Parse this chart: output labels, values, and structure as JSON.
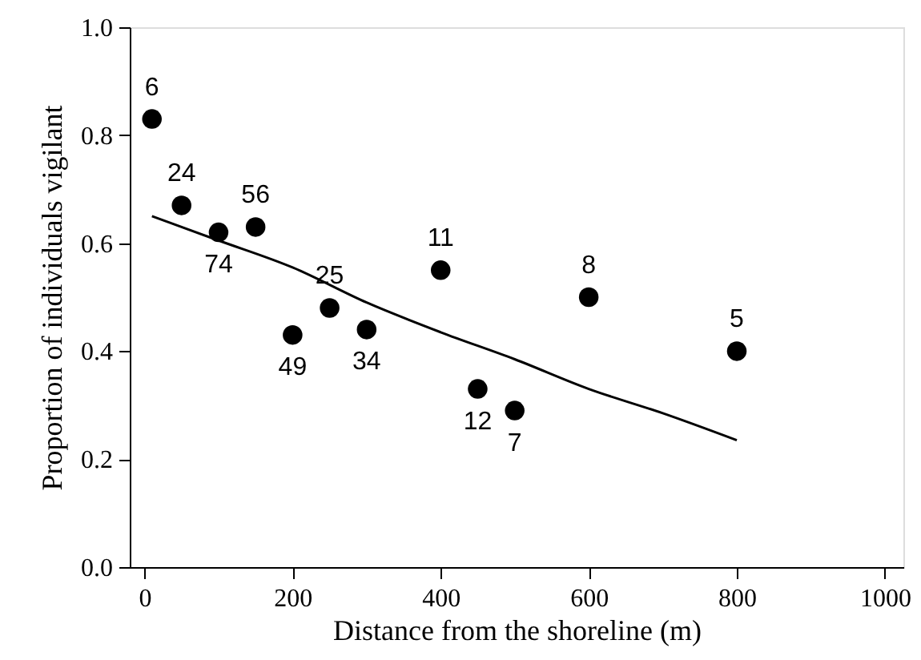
{
  "chart_data": {
    "type": "scatter",
    "xlabel": "Distance from the shoreline (m)",
    "ylabel": "Proportion of individuals vigilant",
    "xlim": [
      -20,
      1025
    ],
    "ylim": [
      0,
      1
    ],
    "xticks": [
      0,
      200,
      400,
      600,
      800,
      1000
    ],
    "yticks": [
      {
        "value": 0,
        "label": "0.0"
      },
      {
        "value": 0.2,
        "label": "0.2"
      },
      {
        "value": 0.4,
        "label": "0.4"
      },
      {
        "value": 0.6,
        "label": "0.6"
      },
      {
        "value": 0.8,
        "label": "0.8"
      },
      {
        "value": 1,
        "label": "1.0"
      }
    ],
    "grid": false,
    "series": [
      {
        "marker": "circle",
        "color": "#000000",
        "x": [
          10,
          50,
          100,
          150,
          200,
          250,
          300,
          400,
          450,
          500,
          600,
          800
        ],
        "values": [
          0.83,
          0.67,
          0.62,
          0.63,
          0.43,
          0.48,
          0.44,
          0.55,
          0.33,
          0.29,
          0.5,
          0.4
        ]
      },
      {
        "type": "line",
        "color": "#000000",
        "line_style": "solid",
        "x": [
          10,
          100,
          200,
          300,
          400,
          500,
          600,
          700,
          800
        ],
        "values": [
          0.65,
          0.605,
          0.555,
          0.49,
          0.435,
          0.385,
          0.33,
          0.285,
          0.235
        ]
      }
    ],
    "annotations": [
      {
        "text": "6",
        "x": 10,
        "y": 0.83
      },
      {
        "text": "24",
        "x": 50,
        "y": 0.67
      },
      {
        "text": "74",
        "x": 100,
        "y": 0.62
      },
      {
        "text": "56",
        "x": 150,
        "y": 0.63
      },
      {
        "text": "49",
        "x": 200,
        "y": 0.43
      },
      {
        "text": "25",
        "x": 250,
        "y": 0.48
      },
      {
        "text": "34",
        "x": 300,
        "y": 0.44
      },
      {
        "text": "11",
        "x": 400,
        "y": 0.55
      },
      {
        "text": "12",
        "x": 450,
        "y": 0.33
      },
      {
        "text": "7",
        "x": 500,
        "y": 0.29
      },
      {
        "text": "8",
        "x": 600,
        "y": 0.5
      },
      {
        "text": "5",
        "x": 800,
        "y": 0.4
      }
    ]
  }
}
